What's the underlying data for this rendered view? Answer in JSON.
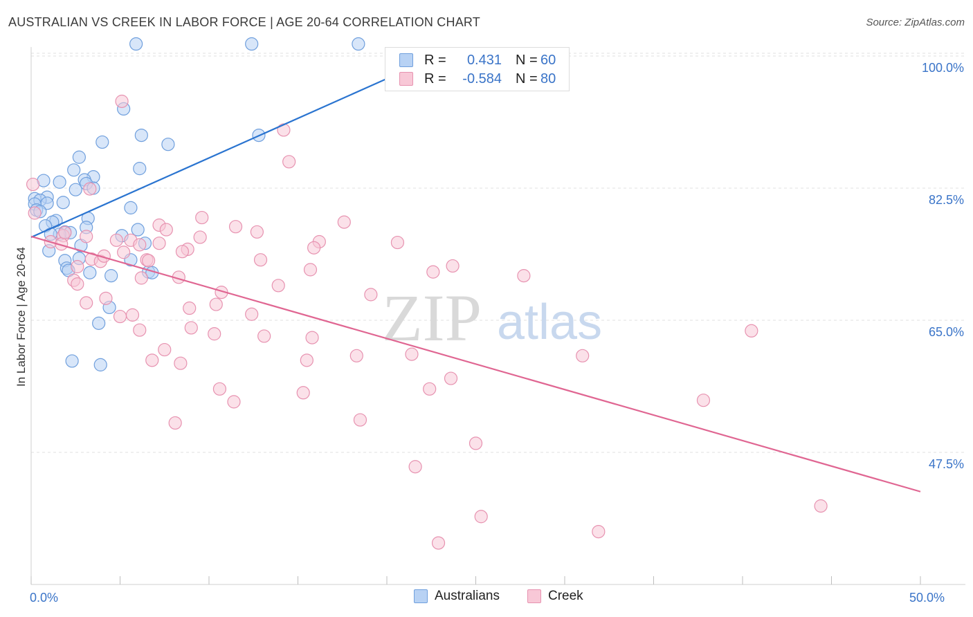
{
  "title": "AUSTRALIAN VS CREEK IN LABOR FORCE | AGE 20-64 CORRELATION CHART",
  "source": "Source: ZipAtlas.com",
  "watermark": {
    "zip": "ZIP",
    "atlas": "atlas"
  },
  "legend": {
    "rows": [
      {
        "r_label": "R =",
        "r_value": "0.431",
        "n_label": "N =",
        "n_value": "60"
      },
      {
        "r_label": "R =",
        "r_value": "-0.584",
        "n_label": "N =",
        "n_value": "80"
      }
    ]
  },
  "bottom_legend": {
    "australians": "Australians",
    "creek": "Creek"
  },
  "colors": {
    "blue_fill": "#b8d2f4",
    "blue_stroke": "#6f9fdd",
    "blue_line": "#2a74d0",
    "pink_fill": "#f8c8d7",
    "pink_stroke": "#e792b0",
    "pink_line": "#e06692",
    "tick": "#3a74c8",
    "grid": "#e2e2e2"
  },
  "chart_data": {
    "type": "scatter",
    "title": "AUSTRALIAN VS CREEK IN LABOR FORCE | AGE 20-64 CORRELATION CHART",
    "xlabel": "",
    "ylabel": "In Labor Force | Age 20-64",
    "xlim": [
      0,
      50
    ],
    "ylim": [
      32.5,
      102
    ],
    "x_tick_labels": [
      {
        "value": 0,
        "label": "0.0%"
      },
      {
        "value": 50,
        "label": "50.0%"
      }
    ],
    "y_tick_labels": [
      {
        "value": 100,
        "label": "100.0%"
      },
      {
        "value": 82.5,
        "label": "82.5%"
      },
      {
        "value": 65,
        "label": "65.0%"
      },
      {
        "value": 47.5,
        "label": "47.5%"
      }
    ],
    "series": [
      {
        "name": "Australians",
        "r": 0.431,
        "n": 60,
        "trend": {
          "x": [
            0,
            20
          ],
          "y": [
            76.0,
            97.0
          ]
        },
        "points": [
          [
            5.9,
            101.6
          ],
          [
            12.4,
            101.6
          ],
          [
            18.4,
            101.6
          ],
          [
            5.2,
            93.0
          ],
          [
            6.2,
            89.5
          ],
          [
            4.0,
            88.6
          ],
          [
            7.7,
            88.3
          ],
          [
            12.8,
            89.5
          ],
          [
            2.7,
            86.6
          ],
          [
            6.1,
            85.1
          ],
          [
            2.4,
            84.9
          ],
          [
            3.5,
            84.0
          ],
          [
            3.0,
            83.6
          ],
          [
            0.7,
            83.5
          ],
          [
            1.6,
            83.3
          ],
          [
            3.1,
            83.1
          ],
          [
            3.5,
            82.5
          ],
          [
            2.5,
            82.3
          ],
          [
            0.9,
            81.3
          ],
          [
            0.2,
            81.1
          ],
          [
            0.5,
            80.9
          ],
          [
            0.9,
            80.5
          ],
          [
            0.2,
            80.4
          ],
          [
            1.8,
            80.6
          ],
          [
            5.6,
            79.9
          ],
          [
            0.3,
            79.6
          ],
          [
            0.5,
            79.4
          ],
          [
            3.2,
            78.5
          ],
          [
            1.4,
            78.2
          ],
          [
            1.2,
            78.0
          ],
          [
            0.8,
            77.5
          ],
          [
            3.1,
            77.3
          ],
          [
            6.0,
            77.0
          ],
          [
            1.9,
            76.7
          ],
          [
            2.2,
            76.6
          ],
          [
            1.6,
            76.4
          ],
          [
            1.1,
            76.4
          ],
          [
            5.1,
            76.2
          ],
          [
            6.4,
            75.2
          ],
          [
            2.8,
            74.9
          ],
          [
            1.0,
            74.2
          ],
          [
            2.7,
            73.2
          ],
          [
            5.6,
            73.0
          ],
          [
            1.9,
            72.9
          ],
          [
            2.0,
            71.9
          ],
          [
            2.1,
            71.6
          ],
          [
            3.3,
            71.3
          ],
          [
            6.6,
            71.4
          ],
          [
            6.8,
            71.3
          ],
          [
            4.5,
            70.9
          ],
          [
            4.4,
            66.7
          ],
          [
            3.8,
            64.6
          ],
          [
            2.3,
            59.6
          ],
          [
            3.9,
            59.1
          ]
        ]
      },
      {
        "name": "Creek",
        "r": -0.584,
        "n": 80,
        "trend": {
          "x": [
            0,
            50
          ],
          "y": [
            76.1,
            42.3
          ]
        },
        "points": [
          [
            5.1,
            94.0
          ],
          [
            14.2,
            90.2
          ],
          [
            14.5,
            86.0
          ],
          [
            3.3,
            82.4
          ],
          [
            0.2,
            79.2
          ],
          [
            9.6,
            78.6
          ],
          [
            17.6,
            78.0
          ],
          [
            7.2,
            77.6
          ],
          [
            11.5,
            77.4
          ],
          [
            7.6,
            77.0
          ],
          [
            12.7,
            76.7
          ],
          [
            1.8,
            76.2
          ],
          [
            3.1,
            76.1
          ],
          [
            9.5,
            76.0
          ],
          [
            4.8,
            75.6
          ],
          [
            1.1,
            75.4
          ],
          [
            5.6,
            75.6
          ],
          [
            16.2,
            75.4
          ],
          [
            20.6,
            75.3
          ],
          [
            7.2,
            75.2
          ],
          [
            1.7,
            75.1
          ],
          [
            6.1,
            75.0
          ],
          [
            15.9,
            74.6
          ],
          [
            8.8,
            74.4
          ],
          [
            8.5,
            74.1
          ],
          [
            5.2,
            74.0
          ],
          [
            3.4,
            73.1
          ],
          [
            3.9,
            72.8
          ],
          [
            6.5,
            73.0
          ],
          [
            6.6,
            72.9
          ],
          [
            23.7,
            72.2
          ],
          [
            22.6,
            71.4
          ],
          [
            8.3,
            70.7
          ],
          [
            27.7,
            70.9
          ],
          [
            6.2,
            70.6
          ],
          [
            2.4,
            70.3
          ],
          [
            2.6,
            69.8
          ],
          [
            13.9,
            69.6
          ],
          [
            10.7,
            68.7
          ],
          [
            19.1,
            68.4
          ],
          [
            4.2,
            67.9
          ],
          [
            3.1,
            67.3
          ],
          [
            10.4,
            67.1
          ],
          [
            8.9,
            66.6
          ],
          [
            12.4,
            65.8
          ],
          [
            5.7,
            65.7
          ],
          [
            5.0,
            65.5
          ],
          [
            6.1,
            63.7
          ],
          [
            40.5,
            63.6
          ],
          [
            10.3,
            63.2
          ],
          [
            13.1,
            62.9
          ],
          [
            15.8,
            62.7
          ],
          [
            7.5,
            61.1
          ],
          [
            21.4,
            60.5
          ],
          [
            18.3,
            60.3
          ],
          [
            31.0,
            60.3
          ],
          [
            6.8,
            59.7
          ],
          [
            15.5,
            59.7
          ],
          [
            8.4,
            59.3
          ],
          [
            23.6,
            57.3
          ],
          [
            10.6,
            55.9
          ],
          [
            22.4,
            55.9
          ],
          [
            15.3,
            55.4
          ],
          [
            37.8,
            54.4
          ],
          [
            11.4,
            54.2
          ],
          [
            18.5,
            51.8
          ],
          [
            8.1,
            51.4
          ],
          [
            25.0,
            48.7
          ],
          [
            21.6,
            45.6
          ],
          [
            44.4,
            40.4
          ],
          [
            25.3,
            39.0
          ],
          [
            31.9,
            37.0
          ],
          [
            22.9,
            35.5
          ],
          [
            0.1,
            83.0
          ],
          [
            1.9,
            76.6
          ],
          [
            2.6,
            72.1
          ],
          [
            4.1,
            73.5
          ],
          [
            12.9,
            73.0
          ],
          [
            15.7,
            71.7
          ],
          [
            9.0,
            64.0
          ]
        ]
      }
    ]
  }
}
